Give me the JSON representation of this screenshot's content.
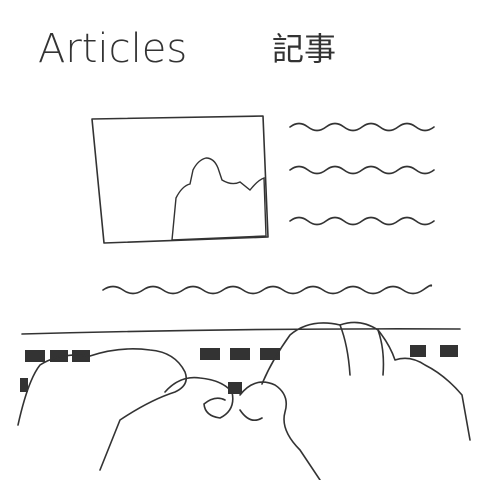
{
  "title": "Articles",
  "title_ja": "記事"
}
